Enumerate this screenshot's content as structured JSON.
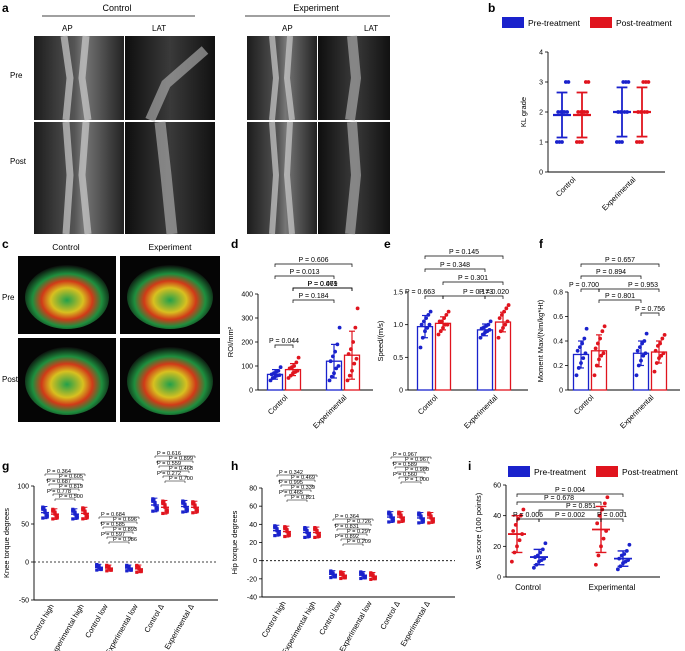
{
  "panels": {
    "a": "a",
    "b": "b",
    "c": "c",
    "d": "d",
    "e": "e",
    "f": "f",
    "g": "g",
    "h": "h",
    "i": "i"
  },
  "xray": {
    "control": "Control",
    "experiment": "Experiment",
    "ap": "AP",
    "lat": "LAT",
    "pre": "Pre",
    "post": "Post"
  },
  "mri": {
    "control": "Control",
    "experiment": "Experiment",
    "pre": "Pre",
    "post": "Post"
  },
  "legend": {
    "pre": "Pre-treatment",
    "post": "Post-treatment"
  },
  "colors": {
    "pre": "#1a22cc",
    "post": "#e0141e",
    "axis": "#000000"
  },
  "chart_data": [
    {
      "id": "b",
      "type": "scatter",
      "ylabel": "KL grade",
      "ylim": [
        0,
        4
      ],
      "yticks": [
        "0",
        "1",
        "2",
        "3",
        "4"
      ],
      "categories": [
        "Control",
        "Experimental"
      ],
      "series": [
        {
          "name": "Pre-treatment",
          "groups": [
            {
              "mean": 1.9,
              "sd": 0.75,
              "points": [
                1,
                1,
                1,
                2,
                2,
                2,
                2,
                2,
                3,
                3
              ]
            },
            {
              "mean": 2.0,
              "sd": 0.82,
              "points": [
                1,
                1,
                1,
                2,
                2,
                2,
                2,
                3,
                3,
                3
              ]
            }
          ]
        },
        {
          "name": "Post-treatment",
          "groups": [
            {
              "mean": 1.9,
              "sd": 0.75,
              "points": [
                1,
                1,
                1,
                2,
                2,
                2,
                2,
                2,
                3,
                3
              ]
            },
            {
              "mean": 2.0,
              "sd": 0.82,
              "points": [
                1,
                1,
                1,
                2,
                2,
                2,
                2,
                3,
                3,
                3
              ]
            }
          ]
        }
      ]
    },
    {
      "id": "d",
      "type": "bar",
      "ylabel": "ROI/mm²",
      "ylim": [
        0,
        400
      ],
      "yticks": [
        "0",
        "100",
        "200",
        "300",
        "400"
      ],
      "categories": [
        "Control",
        "Experimental"
      ],
      "series": [
        {
          "name": "Pre-treatment",
          "groups": [
            {
              "mean": 65,
              "sd": 20,
              "points": [
                40,
                50,
                55,
                60,
                62,
                65,
                70,
                75,
                80,
                95
              ]
            },
            {
              "mean": 120,
              "sd": 70,
              "points": [
                40,
                55,
                70,
                90,
                100,
                120,
                140,
                160,
                190,
                260
              ]
            }
          ]
        },
        {
          "name": "Post-treatment",
          "groups": [
            {
              "mean": 85,
              "sd": 25,
              "points": [
                50,
                60,
                70,
                75,
                80,
                90,
                95,
                100,
                115,
                135
              ]
            },
            {
              "mean": 145,
              "sd": 100,
              "points": [
                40,
                60,
                80,
                110,
                130,
                150,
                170,
                200,
                260,
                340
              ]
            }
          ]
        }
      ],
      "pvalues": [
        "P = 0.606",
        "P = 0.013",
        "P = 0.044",
        "P = 0.069",
        "P = 0.471",
        "P = 0.184"
      ]
    },
    {
      "id": "e",
      "type": "bar",
      "ylabel": "Speed/(m/s)",
      "ylim": [
        0,
        1.5
      ],
      "yticks": [
        "0",
        "0.5",
        "1.0",
        "1.5"
      ],
      "categories": [
        "Control",
        "Experimental"
      ],
      "series": [
        {
          "name": "Pre-treatment",
          "groups": [
            {
              "mean": 0.97,
              "sd": 0.17,
              "points": [
                0.65,
                0.8,
                0.9,
                0.95,
                1.0,
                1.0,
                1.05,
                1.1,
                1.15,
                1.2
              ]
            },
            {
              "mean": 0.92,
              "sd": 0.09,
              "points": [
                0.8,
                0.85,
                0.88,
                0.9,
                0.92,
                0.94,
                0.96,
                0.98,
                1.0,
                1.05
              ]
            }
          ]
        },
        {
          "name": "Post-treatment",
          "groups": [
            {
              "mean": 1.02,
              "sd": 0.1,
              "points": [
                0.85,
                0.9,
                0.95,
                1.0,
                1.0,
                1.05,
                1.05,
                1.1,
                1.15,
                1.2
              ]
            },
            {
              "mean": 1.04,
              "sd": 0.15,
              "points": [
                0.8,
                0.9,
                0.95,
                1.0,
                1.05,
                1.1,
                1.15,
                1.2,
                1.25,
                1.3
              ]
            }
          ]
        }
      ],
      "pvalues": [
        "P = 0.145",
        "P = 0.348",
        "P = 0.663",
        "P = 0.301",
        "P = 0.173",
        "P = 0.020"
      ]
    },
    {
      "id": "f",
      "type": "bar",
      "ylabel": "Moment Max/(Nm/kg*Ht)",
      "ylim": [
        0,
        0.8
      ],
      "yticks": [
        "0",
        "0.2",
        "0.4",
        "0.6",
        "0.8"
      ],
      "categories": [
        "Control",
        "Experimental"
      ],
      "series": [
        {
          "name": "Pre-treatment",
          "groups": [
            {
              "mean": 0.29,
              "sd": 0.11,
              "points": [
                0.12,
                0.18,
                0.22,
                0.26,
                0.3,
                0.32,
                0.35,
                0.38,
                0.42,
                0.5
              ]
            },
            {
              "mean": 0.3,
              "sd": 0.1,
              "points": [
                0.12,
                0.2,
                0.24,
                0.28,
                0.3,
                0.32,
                0.35,
                0.38,
                0.4,
                0.46
              ]
            }
          ]
        },
        {
          "name": "Post-treatment",
          "groups": [
            {
              "mean": 0.32,
              "sd": 0.13,
              "points": [
                0.12,
                0.2,
                0.25,
                0.28,
                0.3,
                0.34,
                0.38,
                0.42,
                0.48,
                0.52
              ]
            },
            {
              "mean": 0.31,
              "sd": 0.09,
              "points": [
                0.15,
                0.22,
                0.26,
                0.28,
                0.3,
                0.32,
                0.36,
                0.38,
                0.42,
                0.45
              ]
            }
          ]
        }
      ],
      "pvalues": [
        "P = 0.657",
        "P = 0.894",
        "P = 0.700",
        "P = 0.801",
        "P = 0.953",
        "P = 0.756"
      ]
    },
    {
      "id": "g",
      "type": "scatter",
      "ylabel": "Knee torque degrees",
      "ylim": [
        -50,
        100
      ],
      "yticks": [
        "-50",
        "0",
        "50",
        "100"
      ],
      "categories": [
        "Control high",
        "Experimental high",
        "Control low",
        "Experimental low",
        "Control Δ",
        "Experimental Δ"
      ],
      "series": [
        {
          "name": "Pre-treatment",
          "groups": [
            {
              "mean": 65,
              "sd": 8
            },
            {
              "mean": 63,
              "sd": 7
            },
            {
              "mean": -7,
              "sd": 4
            },
            {
              "mean": -8,
              "sd": 4
            },
            {
              "mean": 75,
              "sd": 9
            },
            {
              "mean": 73,
              "sd": 8
            }
          ]
        },
        {
          "name": "Post-treatment",
          "groups": [
            {
              "mean": 63,
              "sd": 7
            },
            {
              "mean": 64,
              "sd": 8
            },
            {
              "mean": -8,
              "sd": 4
            },
            {
              "mean": -9,
              "sd": 5
            },
            {
              "mean": 72,
              "sd": 9
            },
            {
              "mean": 72,
              "sd": 8
            }
          ]
        }
      ],
      "pvalues": [
        "P = 0.364",
        "P = 0.605",
        "P = 0.687",
        "P = 0.819",
        "P = 0.778",
        "P = 0.500",
        "P = 0.684",
        "P = 0.696",
        "P = 0.585",
        "P = 0.893",
        "P = 0.597",
        "P = 0.986",
        "P = 0.616",
        "P = 0.899",
        "P = 0.559",
        "P = 0.468",
        "P = 0.272",
        "P = 0.700"
      ]
    },
    {
      "id": "h",
      "type": "scatter",
      "ylabel": "Hip torque degrees",
      "ylim": [
        -40,
        80
      ],
      "yticks": [
        "-40",
        "-20",
        "0",
        "20",
        "40",
        "60",
        "80"
      ],
      "categories": [
        "Control high",
        "Experimental high",
        "Control low",
        "Experimental low",
        "Control Δ",
        "Experimental Δ"
      ],
      "series": [
        {
          "name": "Pre-treatment",
          "groups": [
            {
              "mean": 33,
              "sd": 6
            },
            {
              "mean": 31,
              "sd": 6
            },
            {
              "mean": -15,
              "sd": 4
            },
            {
              "mean": -16,
              "sd": 4
            },
            {
              "mean": 48,
              "sd": 6
            },
            {
              "mean": 47,
              "sd": 6
            }
          ]
        },
        {
          "name": "Post-treatment",
          "groups": [
            {
              "mean": 32,
              "sd": 6
            },
            {
              "mean": 31,
              "sd": 6
            },
            {
              "mean": -16,
              "sd": 4
            },
            {
              "mean": -17,
              "sd": 4
            },
            {
              "mean": 48,
              "sd": 6
            },
            {
              "mean": 47,
              "sd": 6
            }
          ]
        }
      ],
      "pvalues": [
        "P = 0.342",
        "P = 0.469",
        "P = 0.995",
        "P = 0.339",
        "P = 0.465",
        "P = 0.821",
        "P = 0.364",
        "P = 0.726",
        "P = 0.831",
        "P = 0.297",
        "P = 0.892",
        "P = 0.209",
        "P = 0.967",
        "P = 0.967",
        "P = 0.589",
        "P = 0.980",
        "P = 0.560",
        "P = 1.000"
      ]
    },
    {
      "id": "i",
      "type": "scatter",
      "ylabel": "VAS score (100 points)",
      "ylim": [
        0,
        60
      ],
      "yticks": [
        "0",
        "20",
        "40",
        "60"
      ],
      "categories": [
        "Control",
        "Experimental"
      ],
      "series": [
        {
          "name": "Post-treatment",
          "groups": [
            {
              "mean": 28,
              "sd": 12,
              "points": [
                10,
                16,
                20,
                24,
                28,
                30,
                34,
                38,
                40,
                44
              ]
            },
            {
              "mean": 31,
              "sd": 15,
              "points": [
                8,
                14,
                20,
                25,
                30,
                35,
                40,
                44,
                48,
                52
              ]
            }
          ]
        },
        {
          "name": "Pre-treatment",
          "groups": [
            {
              "mean": 13,
              "sd": 5,
              "points": [
                6,
                8,
                10,
                11,
                12,
                13,
                14,
                16,
                18,
                22
              ]
            },
            {
              "mean": 12,
              "sd": 5,
              "points": [
                5,
                7,
                9,
                10,
                11,
                12,
                14,
                15,
                17,
                21
              ]
            }
          ]
        }
      ],
      "pvalues": [
        "P = 0.004",
        "P = 0.678",
        "P = 0.851",
        "P = 0.006",
        "P = 0.002",
        "P = 0.001"
      ]
    }
  ]
}
